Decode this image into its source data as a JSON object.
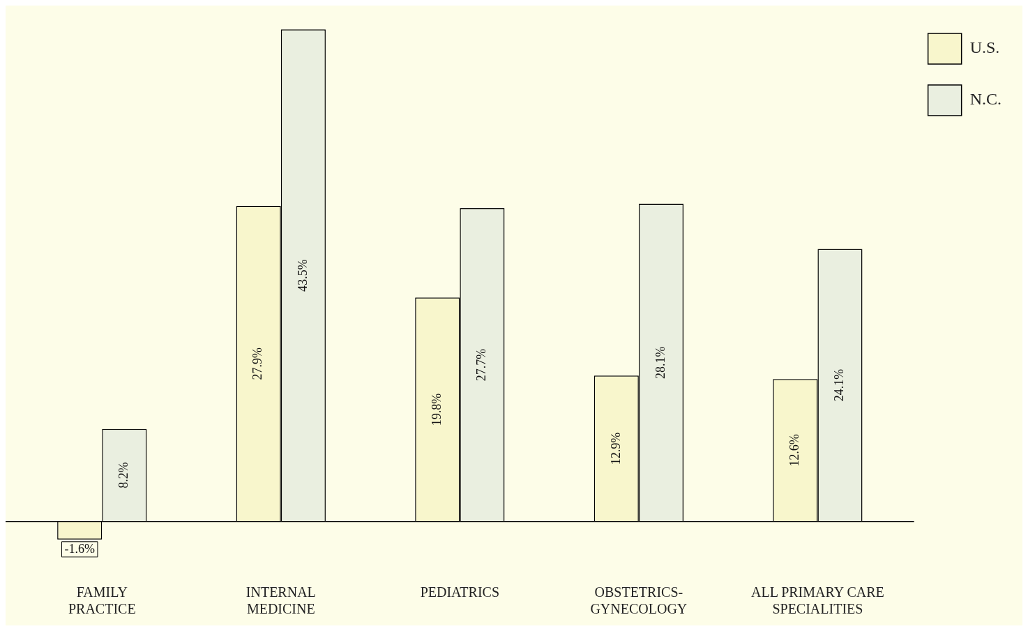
{
  "chart_data": {
    "type": "bar",
    "categories": [
      "FAMILY\nPRACTICE",
      "INTERNAL\nMEDICINE",
      "PEDIATRICS",
      "OBSTETRICS-\nGYNECOLOGY",
      "ALL PRIMARY CARE\nSPECIALITIES"
    ],
    "series": [
      {
        "name": "U.S.",
        "color": "#f8f6cc",
        "values": [
          -1.6,
          27.9,
          19.8,
          12.9,
          12.6
        ],
        "value_labels": [
          "-1.6%",
          "27.9%",
          "19.8%",
          "12.9%",
          "12.6%"
        ]
      },
      {
        "name": "N.C.",
        "color": "#eaefe0",
        "values": [
          8.2,
          43.5,
          27.7,
          28.1,
          24.1
        ],
        "value_labels": [
          "8.2%",
          "43.5%",
          "27.7%",
          "28.1%",
          "24.1%"
        ]
      }
    ],
    "legend": "top right",
    "grid": false
  }
}
